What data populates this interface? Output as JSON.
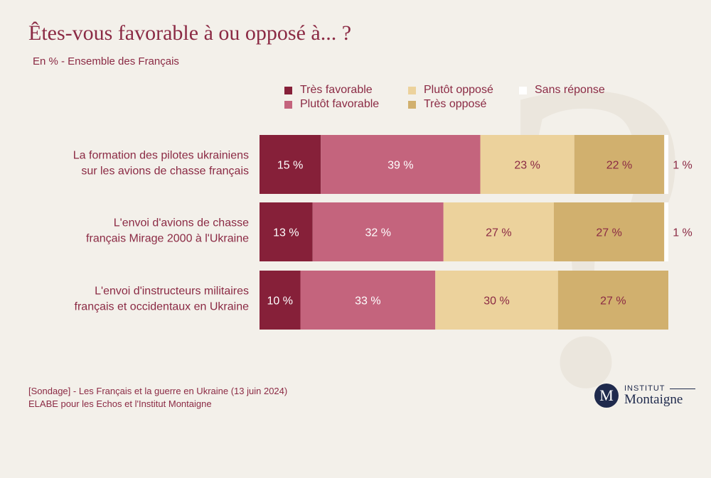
{
  "title": "Êtes-vous favorable à ou opposé à... ?",
  "subtitle": "En % - Ensemble des Français",
  "chart_data": {
    "type": "bar",
    "orientation": "horizontal",
    "stacked": true,
    "unit": "%",
    "categories": [
      [
        "La formation des pilotes ukrainiens",
        "sur les avions de chasse français"
      ],
      [
        "L'envoi d'avions de chasse",
        "français Mirage 2000 à l'Ukraine"
      ],
      [
        "L'envoi d'instructeurs militaires",
        "français et occidentaux en Ukraine"
      ]
    ],
    "series": [
      {
        "name": "Très favorable",
        "color": "#862039",
        "label_color": "#ffffff",
        "values": [
          15,
          13,
          10
        ]
      },
      {
        "name": "Plutôt favorable",
        "color": "#c4647d",
        "label_color": "#ffffff",
        "values": [
          39,
          32,
          33
        ]
      },
      {
        "name": "Plutôt opposé",
        "color": "#ecd29c",
        "label_color": "#8b2a44",
        "values": [
          23,
          27,
          30
        ]
      },
      {
        "name": "Très opposé",
        "color": "#d1b06e",
        "label_color": "#8b2a44",
        "values": [
          22,
          27,
          27
        ]
      },
      {
        "name": "Sans réponse",
        "color": "#ffffff",
        "label_color": "#8b2a44",
        "values": [
          1,
          1,
          0
        ]
      }
    ],
    "xlim": [
      0,
      100
    ],
    "legend_position": "top"
  },
  "footer": {
    "line1": "[Sondage] - Les Français et la guerre en Ukraine (13 juin 2024)",
    "line2": "ELABE pour les Echos et l'Institut Montaigne"
  },
  "logo": {
    "letter": "M",
    "institut": "INSTITUT",
    "name": "Montaigne"
  }
}
